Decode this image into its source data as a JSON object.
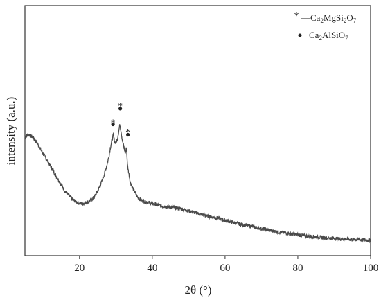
{
  "chart_data": {
    "type": "line",
    "title": "",
    "xlabel": "2θ (°)",
    "ylabel": "intensity (a.u.)",
    "xlim": [
      5,
      100
    ],
    "x_ticks": [
      20,
      40,
      60,
      80,
      100
    ],
    "y_ticks_shown": false,
    "grid": false,
    "legend_position": "top-right",
    "line_color": "#4a4a4a",
    "series": [
      {
        "name": "",
        "x": [
          5,
          6,
          7,
          8,
          9,
          10,
          11,
          12,
          13,
          14,
          15,
          16,
          17,
          18,
          19,
          20,
          21,
          22,
          23,
          24,
          25,
          26,
          27,
          28,
          28.5,
          29,
          29.3,
          29.6,
          30,
          30.4,
          30.8,
          31.1,
          31.4,
          31.8,
          32.2,
          32.6,
          32.9,
          33.2,
          33.6,
          34,
          35,
          36,
          37,
          38,
          39,
          40,
          42,
          44,
          46,
          48,
          50,
          52,
          55,
          58,
          60,
          63,
          66,
          70,
          74,
          78,
          82,
          86,
          90,
          94,
          97,
          100
        ],
        "y": [
          0.52,
          0.53,
          0.52,
          0.5,
          0.47,
          0.44,
          0.41,
          0.38,
          0.35,
          0.32,
          0.29,
          0.26,
          0.24,
          0.22,
          0.21,
          0.2,
          0.2,
          0.205,
          0.215,
          0.23,
          0.26,
          0.3,
          0.35,
          0.42,
          0.47,
          0.51,
          0.53,
          0.5,
          0.49,
          0.51,
          0.55,
          0.58,
          0.55,
          0.5,
          0.47,
          0.44,
          0.47,
          0.38,
          0.34,
          0.3,
          0.26,
          0.23,
          0.215,
          0.21,
          0.205,
          0.2,
          0.19,
          0.185,
          0.18,
          0.175,
          0.165,
          0.155,
          0.14,
          0.13,
          0.12,
          0.105,
          0.095,
          0.08,
          0.065,
          0.055,
          0.045,
          0.038,
          0.032,
          0.028,
          0.026,
          0.024
        ]
      }
    ],
    "ylim": [
      -0.05,
      1.15
    ],
    "legend": [
      {
        "marker": "*",
        "name": "—Ca2MgSi2O7",
        "base": "—Ca",
        "sub1": "2",
        "mid": "MgSi",
        "sub2": "2",
        "mid2": "O",
        "sub3": "7"
      },
      {
        "marker": "●",
        "name": "Ca2AlSiO7",
        "base": "Ca",
        "sub1": "2",
        "mid": "AlSiO",
        "sub2": "7"
      }
    ],
    "annotations": [
      {
        "marker": "*",
        "x": 29.2,
        "y": 0.6
      },
      {
        "marker": "dot",
        "x": 29.2,
        "y": 0.58
      },
      {
        "marker": "*",
        "x": 31.2,
        "y": 0.68
      },
      {
        "marker": "dot",
        "x": 31.2,
        "y": 0.655
      },
      {
        "marker": "*",
        "x": 33.3,
        "y": 0.555
      },
      {
        "marker": "dot",
        "x": 33.3,
        "y": 0.53
      }
    ]
  }
}
